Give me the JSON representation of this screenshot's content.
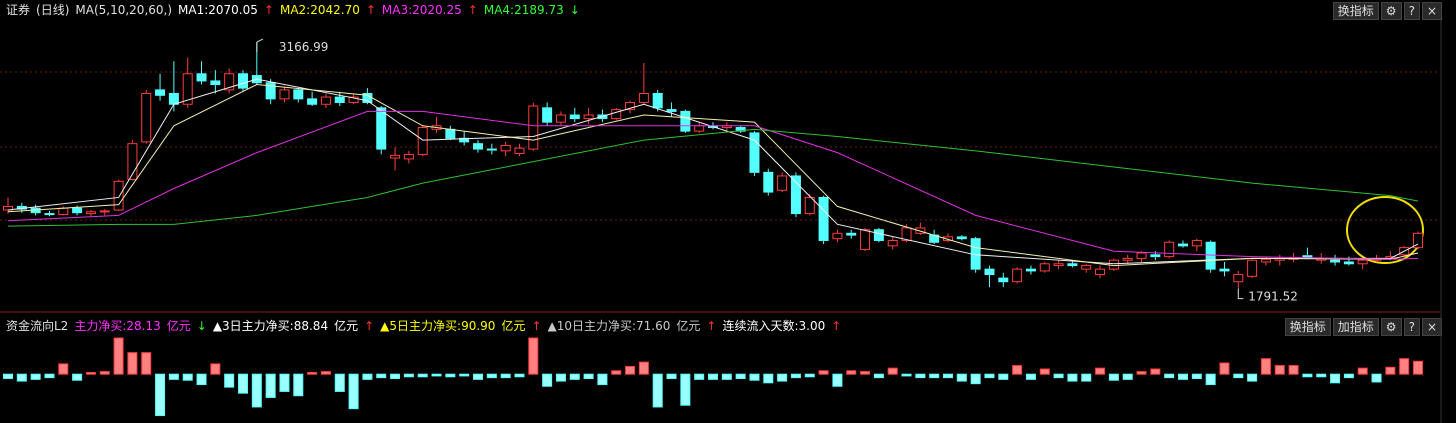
{
  "header": {
    "items": [
      {
        "text": "证券",
        "color": "#e0e0e0"
      },
      {
        "text": "(日线)",
        "color": "#e0e0e0"
      },
      {
        "text": "MA(5,10,20,60,)",
        "color": "#e0e0e0"
      },
      {
        "text": "MA1:2070.05",
        "color": "#ffffff"
      },
      {
        "text": "↑",
        "color": "#ff3030"
      },
      {
        "text": "MA2:2042.70",
        "color": "#ffff00"
      },
      {
        "text": "↑",
        "color": "#ff3030"
      },
      {
        "text": "MA3:2020.25",
        "color": "#ff30ff"
      },
      {
        "text": "↑",
        "color": "#ff3030"
      },
      {
        "text": "MA4:2189.73",
        "color": "#30ff30"
      },
      {
        "text": "↓",
        "color": "#30ff30"
      }
    ],
    "buttons": [
      "换指标",
      "⚙",
      "?",
      "×"
    ]
  },
  "lower_header": {
    "items": [
      {
        "text": "资金流向L2",
        "color": "#e0e0e0"
      },
      {
        "text": "主力净买:28.13",
        "color": "#ff30ff"
      },
      {
        "text": "亿元",
        "color": "#ff30ff"
      },
      {
        "text": "↓",
        "color": "#30ff30"
      },
      {
        "text": "▲3日主力净买:88.84",
        "color": "#ffffff"
      },
      {
        "text": "亿元",
        "color": "#ffffff"
      },
      {
        "text": "↑",
        "color": "#ff3030"
      },
      {
        "text": "▲5日主力净买:90.90",
        "color": "#ffff00"
      },
      {
        "text": "亿元",
        "color": "#ffff00"
      },
      {
        "text": "↑",
        "color": "#ff3030"
      },
      {
        "text": "▲10日主力净买:71.60",
        "color": "#c8c8c8"
      },
      {
        "text": "亿元",
        "color": "#c8c8c8"
      },
      {
        "text": "↑",
        "color": "#ff3030"
      },
      {
        "text": "连续流入天数:3.00",
        "color": "#ffffff"
      },
      {
        "text": "↑",
        "color": "#ff3030"
      }
    ],
    "buttons": [
      "换指标",
      "加指标",
      "⚙",
      "?",
      "×"
    ]
  },
  "chart_data": {
    "type": "candlestick",
    "ylim": [
      1700,
      3290
    ],
    "high_label": "3166.99",
    "low_label": "1791.52",
    "up_color": "#ff3c3c",
    "down_color": "#54ffff",
    "candles": [
      [
        2230,
        2300,
        2210,
        2250
      ],
      [
        2250,
        2270,
        2215,
        2235
      ],
      [
        2240,
        2260,
        2200,
        2215
      ],
      [
        2210,
        2225,
        2195,
        2205
      ],
      [
        2205,
        2250,
        2200,
        2240
      ],
      [
        2240,
        2255,
        2200,
        2215
      ],
      [
        2210,
        2230,
        2195,
        2220
      ],
      [
        2220,
        2235,
        2200,
        2225
      ],
      [
        2230,
        2400,
        2225,
        2390
      ],
      [
        2400,
        2620,
        2395,
        2600
      ],
      [
        2610,
        2900,
        2600,
        2880
      ],
      [
        2900,
        2990,
        2840,
        2870
      ],
      [
        2880,
        3060,
        2780,
        2820
      ],
      [
        2820,
        3080,
        2800,
        2990
      ],
      [
        2990,
        3060,
        2930,
        2950
      ],
      [
        2950,
        3010,
        2880,
        2930
      ],
      [
        2900,
        3020,
        2880,
        2990
      ],
      [
        2990,
        3010,
        2890,
        2910
      ],
      [
        2980,
        3166.99,
        2930,
        2940
      ],
      [
        2940,
        2960,
        2820,
        2850
      ],
      [
        2850,
        2920,
        2830,
        2900
      ],
      [
        2900,
        2910,
        2830,
        2850
      ],
      [
        2850,
        2890,
        2810,
        2820
      ],
      [
        2820,
        2880,
        2800,
        2860
      ],
      [
        2860,
        2890,
        2810,
        2830
      ],
      [
        2830,
        2880,
        2820,
        2860
      ],
      [
        2880,
        2910,
        2820,
        2830
      ],
      [
        2800,
        2810,
        2540,
        2570
      ],
      [
        2520,
        2580,
        2450,
        2535
      ],
      [
        2515,
        2560,
        2490,
        2540
      ],
      [
        2540,
        2700,
        2530,
        2690
      ],
      [
        2680,
        2750,
        2660,
        2700
      ],
      [
        2680,
        2700,
        2620,
        2630
      ],
      [
        2630,
        2670,
        2590,
        2610
      ],
      [
        2600,
        2620,
        2550,
        2570
      ],
      [
        2570,
        2600,
        2540,
        2565
      ],
      [
        2560,
        2610,
        2530,
        2590
      ],
      [
        2545,
        2600,
        2530,
        2575
      ],
      [
        2570,
        2830,
        2560,
        2810
      ],
      [
        2800,
        2830,
        2700,
        2720
      ],
      [
        2720,
        2780,
        2700,
        2760
      ],
      [
        2760,
        2800,
        2720,
        2740
      ],
      [
        2740,
        2800,
        2710,
        2760
      ],
      [
        2760,
        2790,
        2720,
        2740
      ],
      [
        2740,
        2800,
        2730,
        2790
      ],
      [
        2790,
        2840,
        2770,
        2830
      ],
      [
        2830,
        3050,
        2820,
        2880
      ],
      [
        2880,
        2900,
        2780,
        2800
      ],
      [
        2790,
        2830,
        2750,
        2780
      ],
      [
        2780,
        2790,
        2660,
        2670
      ],
      [
        2670,
        2720,
        2660,
        2700
      ],
      [
        2700,
        2720,
        2680,
        2690
      ],
      [
        2690,
        2720,
        2670,
        2700
      ],
      [
        2690,
        2700,
        2660,
        2670
      ],
      [
        2660,
        2670,
        2420,
        2440
      ],
      [
        2440,
        2460,
        2310,
        2330
      ],
      [
        2340,
        2440,
        2330,
        2420
      ],
      [
        2420,
        2440,
        2190,
        2210
      ],
      [
        2210,
        2320,
        2200,
        2300
      ],
      [
        2300,
        2310,
        2040,
        2060
      ],
      [
        2070,
        2120,
        2050,
        2100
      ],
      [
        2100,
        2120,
        2070,
        2090
      ],
      [
        2010,
        2130,
        2000,
        2120
      ],
      [
        2120,
        2130,
        2050,
        2060
      ],
      [
        2030,
        2080,
        2010,
        2060
      ],
      [
        2060,
        2150,
        2050,
        2130
      ],
      [
        2100,
        2160,
        2090,
        2130
      ],
      [
        2090,
        2120,
        2040,
        2050
      ],
      [
        2060,
        2100,
        2050,
        2080
      ],
      [
        2080,
        2090,
        2060,
        2070
      ],
      [
        2070,
        2080,
        1880,
        1900
      ],
      [
        1900,
        1920,
        1800,
        1870
      ],
      [
        1850,
        1880,
        1800,
        1830
      ],
      [
        1830,
        1910,
        1820,
        1900
      ],
      [
        1900,
        1920,
        1870,
        1890
      ],
      [
        1890,
        1940,
        1880,
        1930
      ],
      [
        1920,
        1950,
        1900,
        1930
      ],
      [
        1930,
        1950,
        1910,
        1920
      ],
      [
        1900,
        1930,
        1880,
        1920
      ],
      [
        1870,
        1920,
        1850,
        1900
      ],
      [
        1900,
        1960,
        1890,
        1950
      ],
      [
        1950,
        1980,
        1930,
        1960
      ],
      [
        1960,
        2000,
        1940,
        1990
      ],
      [
        1980,
        2000,
        1950,
        1970
      ],
      [
        1970,
        2060,
        1960,
        2050
      ],
      [
        2040,
        2060,
        2020,
        2030
      ],
      [
        2030,
        2070,
        2000,
        2060
      ],
      [
        2050,
        2060,
        1880,
        1900
      ],
      [
        1900,
        1940,
        1860,
        1890
      ],
      [
        1830,
        1890,
        1791.52,
        1870
      ],
      [
        1860,
        1960,
        1850,
        1950
      ],
      [
        1940,
        1970,
        1920,
        1955
      ],
      [
        1950,
        1980,
        1920,
        1960
      ],
      [
        1955,
        1990,
        1940,
        1965
      ],
      [
        1975,
        2020,
        1955,
        1965
      ],
      [
        1950,
        1990,
        1930,
        1960
      ],
      [
        1950,
        1980,
        1920,
        1940
      ],
      [
        1940,
        1970,
        1920,
        1930
      ],
      [
        1930,
        1960,
        1900,
        1950
      ],
      [
        1950,
        1980,
        1940,
        1960
      ],
      [
        1960,
        2000,
        1950,
        1970
      ],
      [
        1980,
        2030,
        1970,
        2020
      ],
      [
        2020,
        2110,
        2010,
        2100
      ]
    ],
    "ma_lines": [
      {
        "x": [
          0,
          8,
          12,
          18,
          26,
          30,
          38,
          46,
          54,
          60,
          70,
          80,
          90,
          100,
          102
        ],
        "color": "#f0f0f0",
        "values": [
          2230,
          2300,
          2820,
          2960,
          2840,
          2620,
          2640,
          2820,
          2620,
          2150,
          1980,
          1930,
          1960,
          1960,
          2040
        ]
      },
      {
        "x": [
          0,
          8,
          12,
          18,
          26,
          30,
          38,
          46,
          54,
          60,
          70,
          80,
          90,
          100,
          102
        ],
        "color": "#f5f0b0",
        "values": [
          2220,
          2260,
          2700,
          2930,
          2870,
          2700,
          2620,
          2760,
          2720,
          2250,
          2020,
          1920,
          1960,
          1955,
          1990
        ]
      },
      {
        "x": [
          0,
          8,
          12,
          18,
          26,
          30,
          38,
          46,
          54,
          60,
          70,
          80,
          90,
          100,
          102
        ],
        "color": "#e030e0",
        "values": [
          2170,
          2200,
          2350,
          2550,
          2780,
          2780,
          2700,
          2700,
          2700,
          2550,
          2200,
          2000,
          1970,
          1955,
          1960
        ]
      },
      {
        "x": [
          0,
          8,
          12,
          18,
          26,
          30,
          38,
          46,
          54,
          60,
          70,
          80,
          90,
          100,
          102
        ],
        "color": "#30c030",
        "values": [
          2140,
          2150,
          2150,
          2200,
          2300,
          2380,
          2500,
          2620,
          2680,
          2640,
          2560,
          2470,
          2380,
          2310,
          2280
        ]
      }
    ],
    "flow_ylim": [
      -52,
      42
    ],
    "flow": [
      -5,
      -8,
      -6,
      -4,
      12,
      -7,
      2,
      3,
      42,
      25,
      25,
      -48,
      -6,
      -7,
      -12,
      12,
      -15,
      -22,
      -38,
      -27,
      -20,
      -25,
      2,
      3,
      -20,
      -40,
      -6,
      -4,
      -5,
      -3,
      -3,
      -2,
      -3,
      -2,
      -6,
      -4,
      -4,
      -3,
      42,
      -14,
      -8,
      -6,
      -5,
      -12,
      4,
      9,
      14,
      -38,
      -5,
      -36,
      -6,
      -6,
      -6,
      -5,
      -7,
      -10,
      -8,
      -4,
      -3,
      4,
      -14,
      4,
      3,
      -4,
      7,
      -2,
      -4,
      -4,
      -4,
      -8,
      -11,
      -4,
      -6,
      10,
      -6,
      6,
      -4,
      -8,
      -8,
      7,
      -7,
      -6,
      3,
      6,
      -4,
      -6,
      -5,
      -12,
      13,
      -4,
      -8,
      18,
      10,
      10,
      -3,
      -3,
      -10,
      -4,
      7,
      -9,
      8,
      18,
      15
    ]
  }
}
